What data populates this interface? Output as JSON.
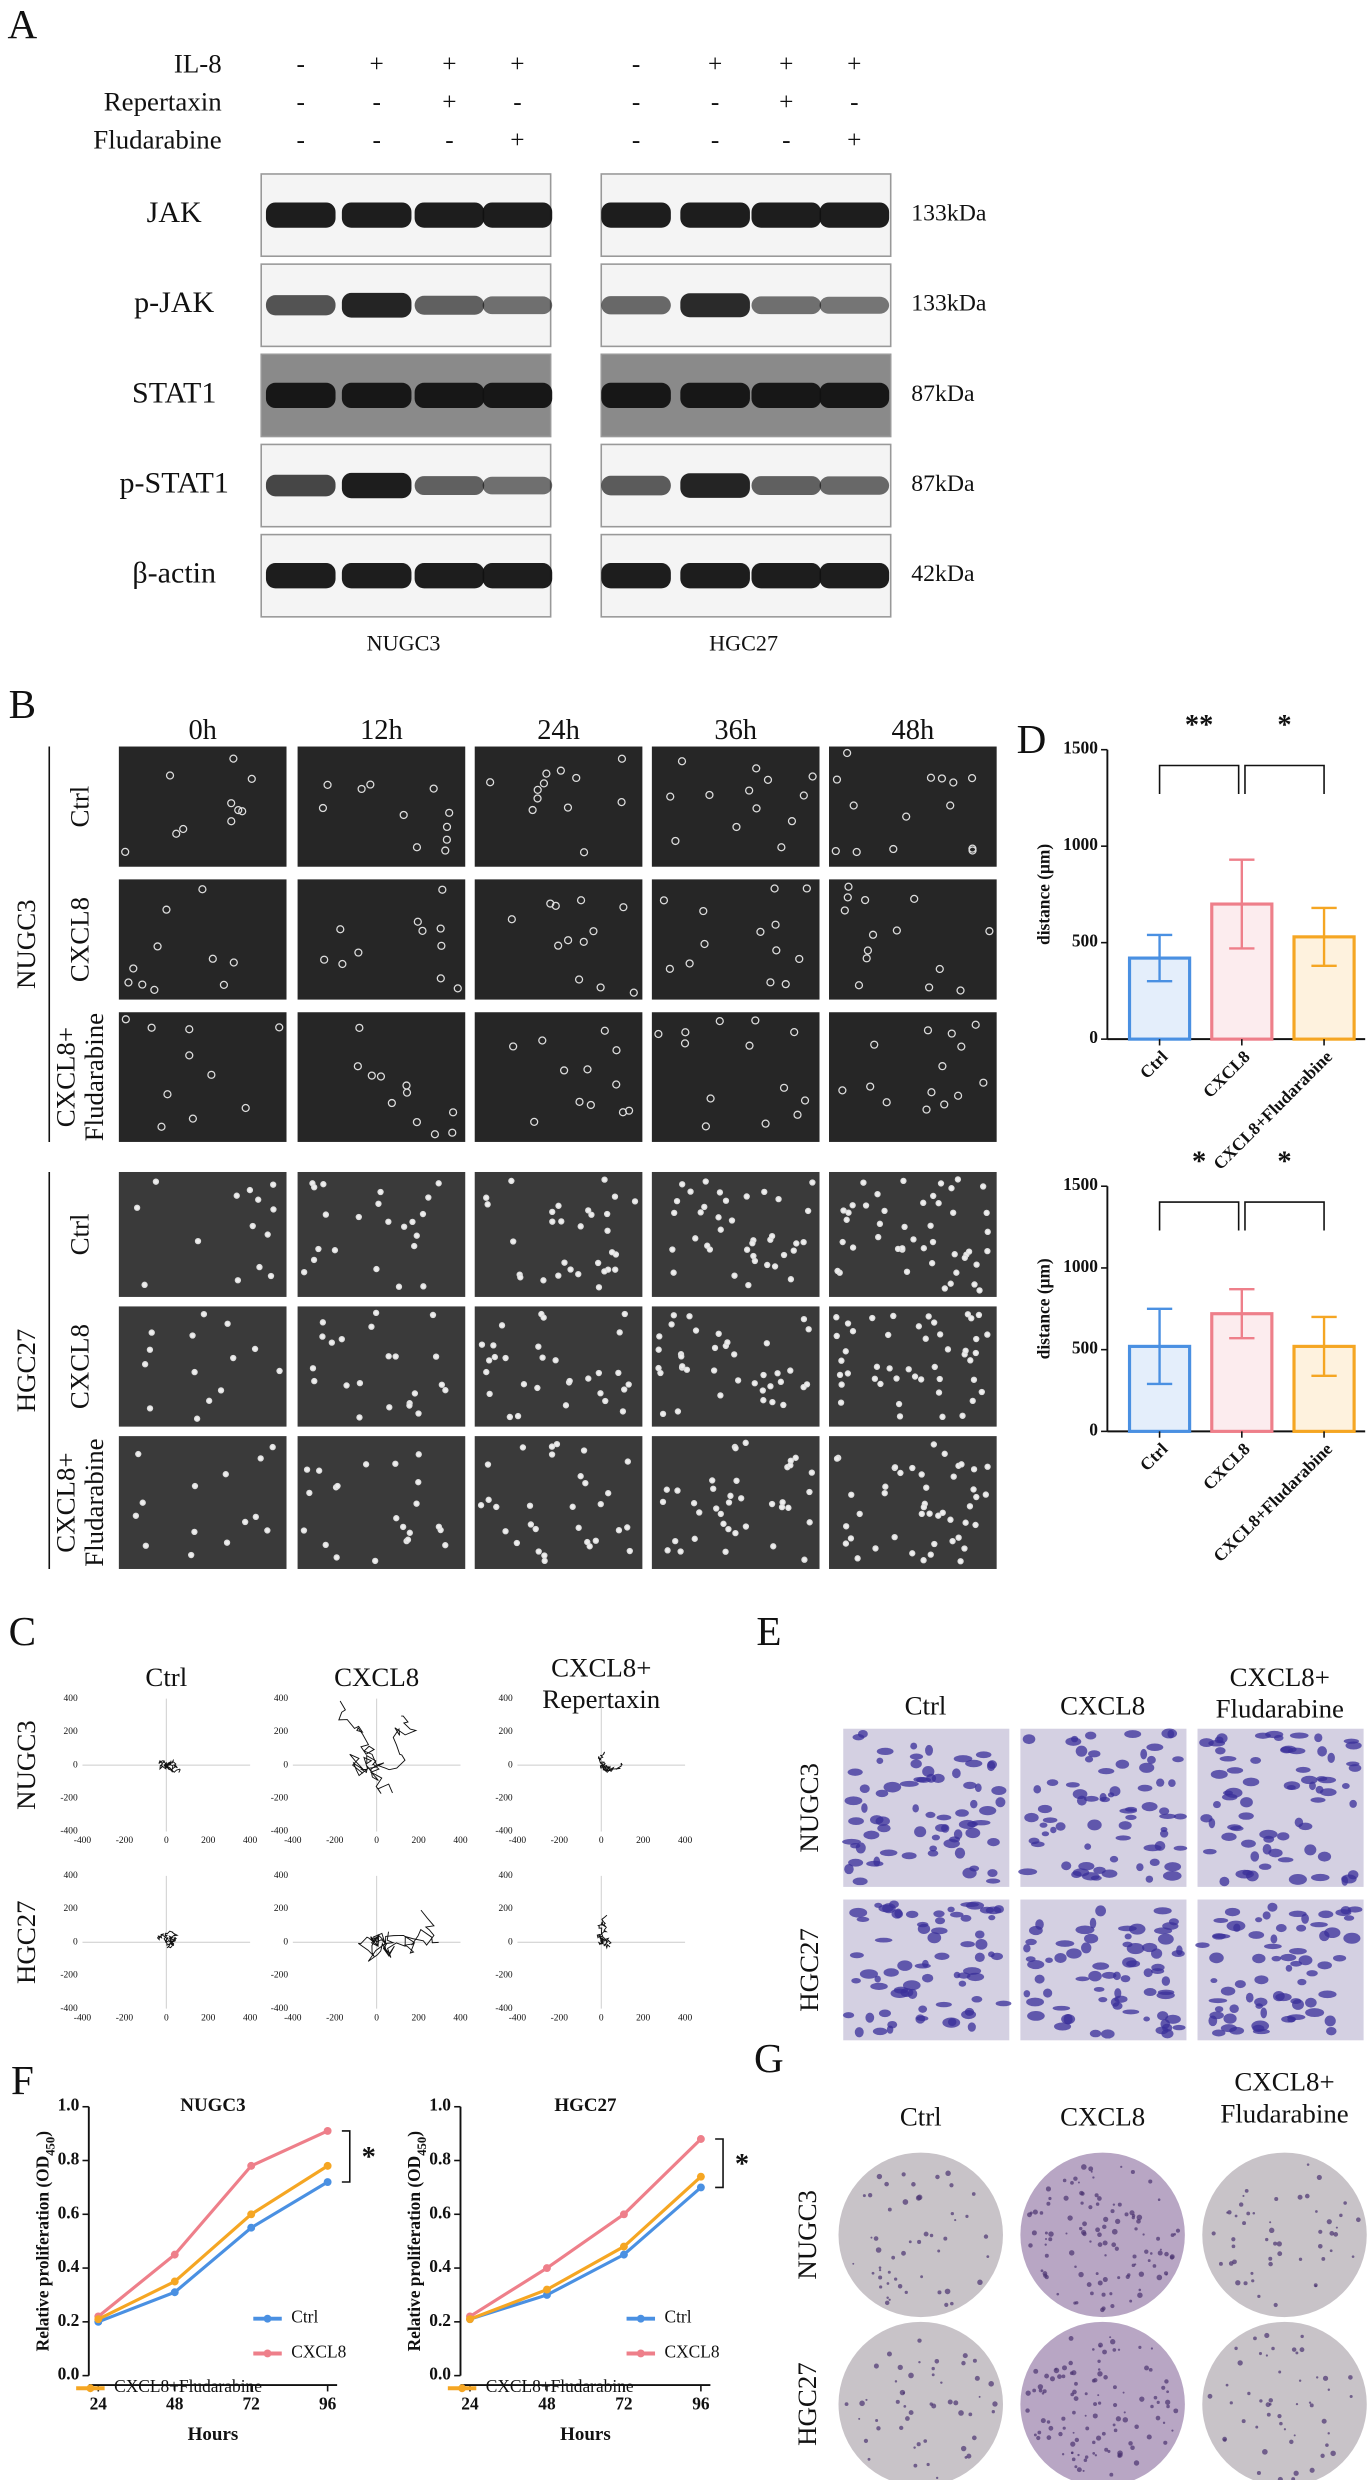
{
  "panels": {
    "A": {
      "label": "A",
      "treatments": [
        {
          "name": "IL-8",
          "signs": [
            "-",
            "+",
            "+",
            "+",
            "-",
            "+",
            "+",
            "+"
          ]
        },
        {
          "name": "Repertaxin",
          "signs": [
            "-",
            "-",
            "+",
            "-",
            "-",
            "-",
            "+",
            "-"
          ]
        },
        {
          "name": "Fludarabine",
          "signs": [
            "-",
            "-",
            "-",
            "+",
            "-",
            "-",
            "-",
            "+"
          ]
        }
      ],
      "blots": [
        {
          "name": "JAK",
          "size": "133kDa"
        },
        {
          "name": "p-JAK",
          "size": "133kDa"
        },
        {
          "name": "STAT1",
          "size": "87kDa"
        },
        {
          "name": "p-STAT1",
          "size": "87kDa"
        },
        {
          "name": "β-actin",
          "size": "42kDa"
        }
      ],
      "cell_lines": [
        "NUGC3",
        "HGC27"
      ]
    },
    "B": {
      "label": "B",
      "times": [
        "0h",
        "12h",
        "24h",
        "36h",
        "48h"
      ],
      "groups": [
        {
          "name": "NUGC3",
          "rows": [
            [
              "Ctrl"
            ],
            [
              "CXCL8"
            ],
            [
              "CXCL8+",
              "Fludarabine"
            ]
          ]
        },
        {
          "name": "HGC27",
          "rows": [
            [
              "Ctrl"
            ],
            [
              "CXCL8"
            ],
            [
              "CXCL8+",
              "Fludarabine"
            ]
          ]
        }
      ]
    },
    "C": {
      "label": "C",
      "titles": [
        [
          "Ctrl"
        ],
        [
          "CXCL8"
        ],
        [
          "CXCL8+",
          "Repertaxin"
        ]
      ],
      "rows": [
        "NUGC3",
        "HGC27"
      ],
      "ticks": [
        -400,
        -200,
        0,
        200,
        400
      ]
    },
    "D": {
      "label": "D"
    },
    "E": {
      "label": "E",
      "titles": [
        [
          "Ctrl"
        ],
        [
          "CXCL8"
        ],
        [
          "CXCL8+",
          "Fludarabine"
        ]
      ],
      "rows": [
        "NUGC3",
        "HGC27"
      ]
    },
    "F": {
      "label": "F"
    },
    "G": {
      "label": "G",
      "titles": [
        [
          "Ctrl"
        ],
        [
          "CXCL8"
        ],
        [
          "CXCL8+",
          "Fludarabine"
        ]
      ],
      "rows": [
        "NUGC3",
        "HGC27"
      ]
    }
  },
  "chart_data": [
    {
      "type": "bar",
      "categories": [
        "Ctrl",
        "CXCL8",
        "CXCL8+Fludarabine"
      ],
      "values": [
        420,
        700,
        530
      ],
      "errors": [
        120,
        230,
        150
      ],
      "colors": [
        "#4a90e2",
        "#ee7f8a",
        "#f5a623"
      ],
      "ylabel": "distance (μm)",
      "ylim": [
        0,
        1500
      ],
      "yticks": [
        0,
        500,
        1000,
        1500
      ],
      "significance": [
        "**",
        "*"
      ]
    },
    {
      "type": "bar",
      "categories": [
        "Ctrl",
        "CXCL8",
        "CXCL8+Fludarabine"
      ],
      "values": [
        520,
        720,
        520
      ],
      "errors": [
        230,
        150,
        180
      ],
      "colors": [
        "#4a90e2",
        "#ee7f8a",
        "#f5a623"
      ],
      "ylabel": "distance (μm)",
      "ylim": [
        0,
        1500
      ],
      "yticks": [
        0,
        500,
        1000,
        1500
      ],
      "significance": [
        "*",
        "*"
      ]
    },
    {
      "type": "line",
      "title": "NUGC3",
      "x": [
        24,
        48,
        72,
        96
      ],
      "xlim": [
        24,
        96
      ],
      "xticks": [
        24,
        48,
        72,
        96
      ],
      "ylim": [
        0,
        1
      ],
      "yticks": [
        {
          "value": 0,
          "label": "0.0"
        },
        0.2,
        0.4,
        0.6,
        0.8,
        {
          "value": 1,
          "label": "1.0"
        }
      ],
      "xlabel": "Hours",
      "ylabel": [
        "Relative proliferation (OD",
        "450",
        ")"
      ],
      "significance": "*",
      "series": [
        {
          "name": "Ctrl",
          "color": "#4a90e2",
          "values": [
            0.2,
            0.31,
            0.55,
            0.72
          ]
        },
        {
          "name": "CXCL8",
          "color": "#ee7f8a",
          "values": [
            0.22,
            0.45,
            0.78,
            0.91
          ]
        },
        {
          "name": "CXCL8+Fludarabine",
          "color": "#f5a623",
          "values": [
            0.21,
            0.35,
            0.6,
            0.78
          ]
        }
      ]
    },
    {
      "type": "line",
      "title": "HGC27",
      "x": [
        24,
        48,
        72,
        96
      ],
      "xlim": [
        24,
        96
      ],
      "xticks": [
        24,
        48,
        72,
        96
      ],
      "ylim": [
        0,
        1
      ],
      "yticks": [
        {
          "value": 0,
          "label": "0.0"
        },
        0.2,
        0.4,
        0.6,
        0.8,
        {
          "value": 1,
          "label": "1.0"
        }
      ],
      "xlabel": "Hours",
      "ylabel": [
        "Relative proliferation (OD",
        "450",
        ")"
      ],
      "significance": "*",
      "series": [
        {
          "name": "Ctrl",
          "color": "#4a90e2",
          "values": [
            0.21,
            0.3,
            0.45,
            0.7
          ]
        },
        {
          "name": "CXCL8",
          "color": "#ee7f8a",
          "values": [
            0.22,
            0.4,
            0.6,
            0.88
          ]
        },
        {
          "name": "CXCL8+Fludarabine",
          "color": "#f5a623",
          "values": [
            0.21,
            0.32,
            0.48,
            0.74
          ]
        }
      ]
    }
  ]
}
